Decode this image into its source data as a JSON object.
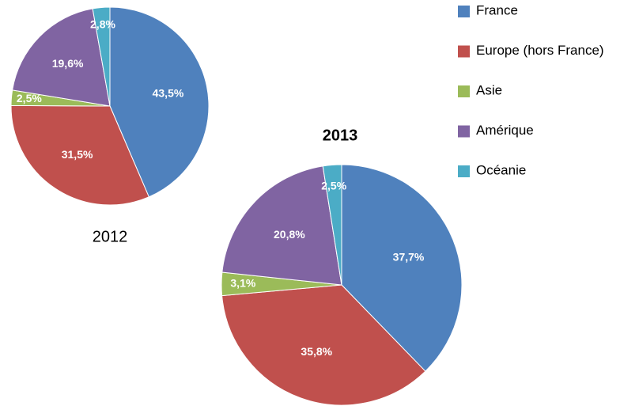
{
  "legend": {
    "categories": [
      "France",
      "Europe (hors France)",
      "Asie",
      "Amérique",
      "Océanie"
    ],
    "colors": [
      "#4f81bd",
      "#c0504d",
      "#9bbb59",
      "#8064a2",
      "#4bacc6"
    ]
  },
  "chart_data": [
    {
      "type": "pie",
      "title": "2012",
      "values": [
        43.5,
        31.5,
        2.5,
        19.6,
        2.8
      ],
      "value_labels": [
        "43,5%",
        "31,5%",
        "2,5%",
        "19,6%",
        "2,8%"
      ]
    },
    {
      "type": "pie",
      "title": "2013",
      "values": [
        37.7,
        35.8,
        3.1,
        20.8,
        2.5
      ],
      "value_labels": [
        "37,7%",
        "35,8%",
        "3,1%",
        "20,8%",
        "2,5%"
      ]
    }
  ]
}
